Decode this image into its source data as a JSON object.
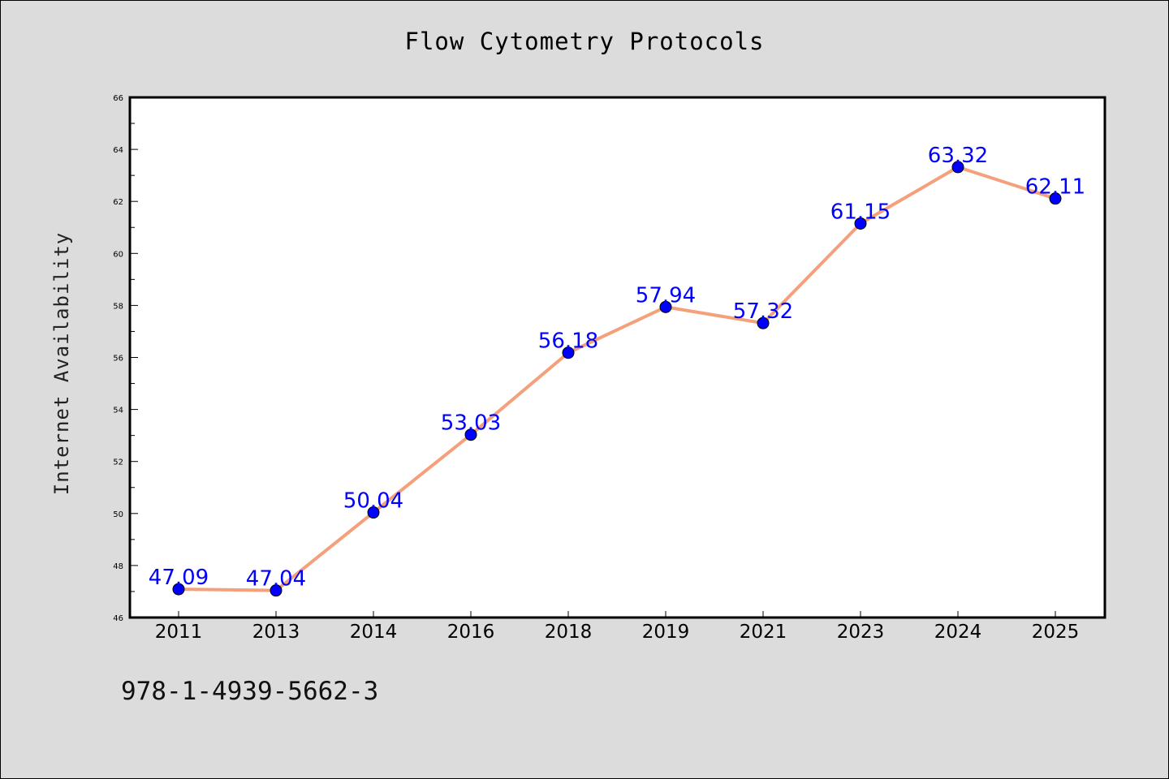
{
  "chart_data": {
    "type": "line",
    "title": "Flow Cytometry Protocols",
    "xlabel": "",
    "ylabel": "Internet Availability",
    "categories": [
      "2011",
      "2013",
      "2014",
      "2016",
      "2018",
      "2019",
      "2021",
      "2023",
      "2024",
      "2025"
    ],
    "series": [
      {
        "values": [
          47.09,
          47.04,
          50.04,
          53.03,
          56.18,
          57.94,
          57.32,
          61.15,
          63.32,
          62.11
        ],
        "labels": [
          "47.09",
          "47.04",
          "50.04",
          "53.03",
          "56.18",
          "57.94",
          "57.32",
          "61.15",
          "63.32",
          "62.11"
        ],
        "line_color": "#f4a07a",
        "marker_color": "#0000ff"
      }
    ],
    "ylim": [
      46,
      66
    ],
    "yticks": [
      "46",
      "48",
      "50",
      "52",
      "54",
      "56",
      "58",
      "60",
      "62",
      "64",
      "66"
    ],
    "grid": false,
    "label_color": "#0000ff"
  },
  "footer_code": "978-1-4939-5662-3"
}
